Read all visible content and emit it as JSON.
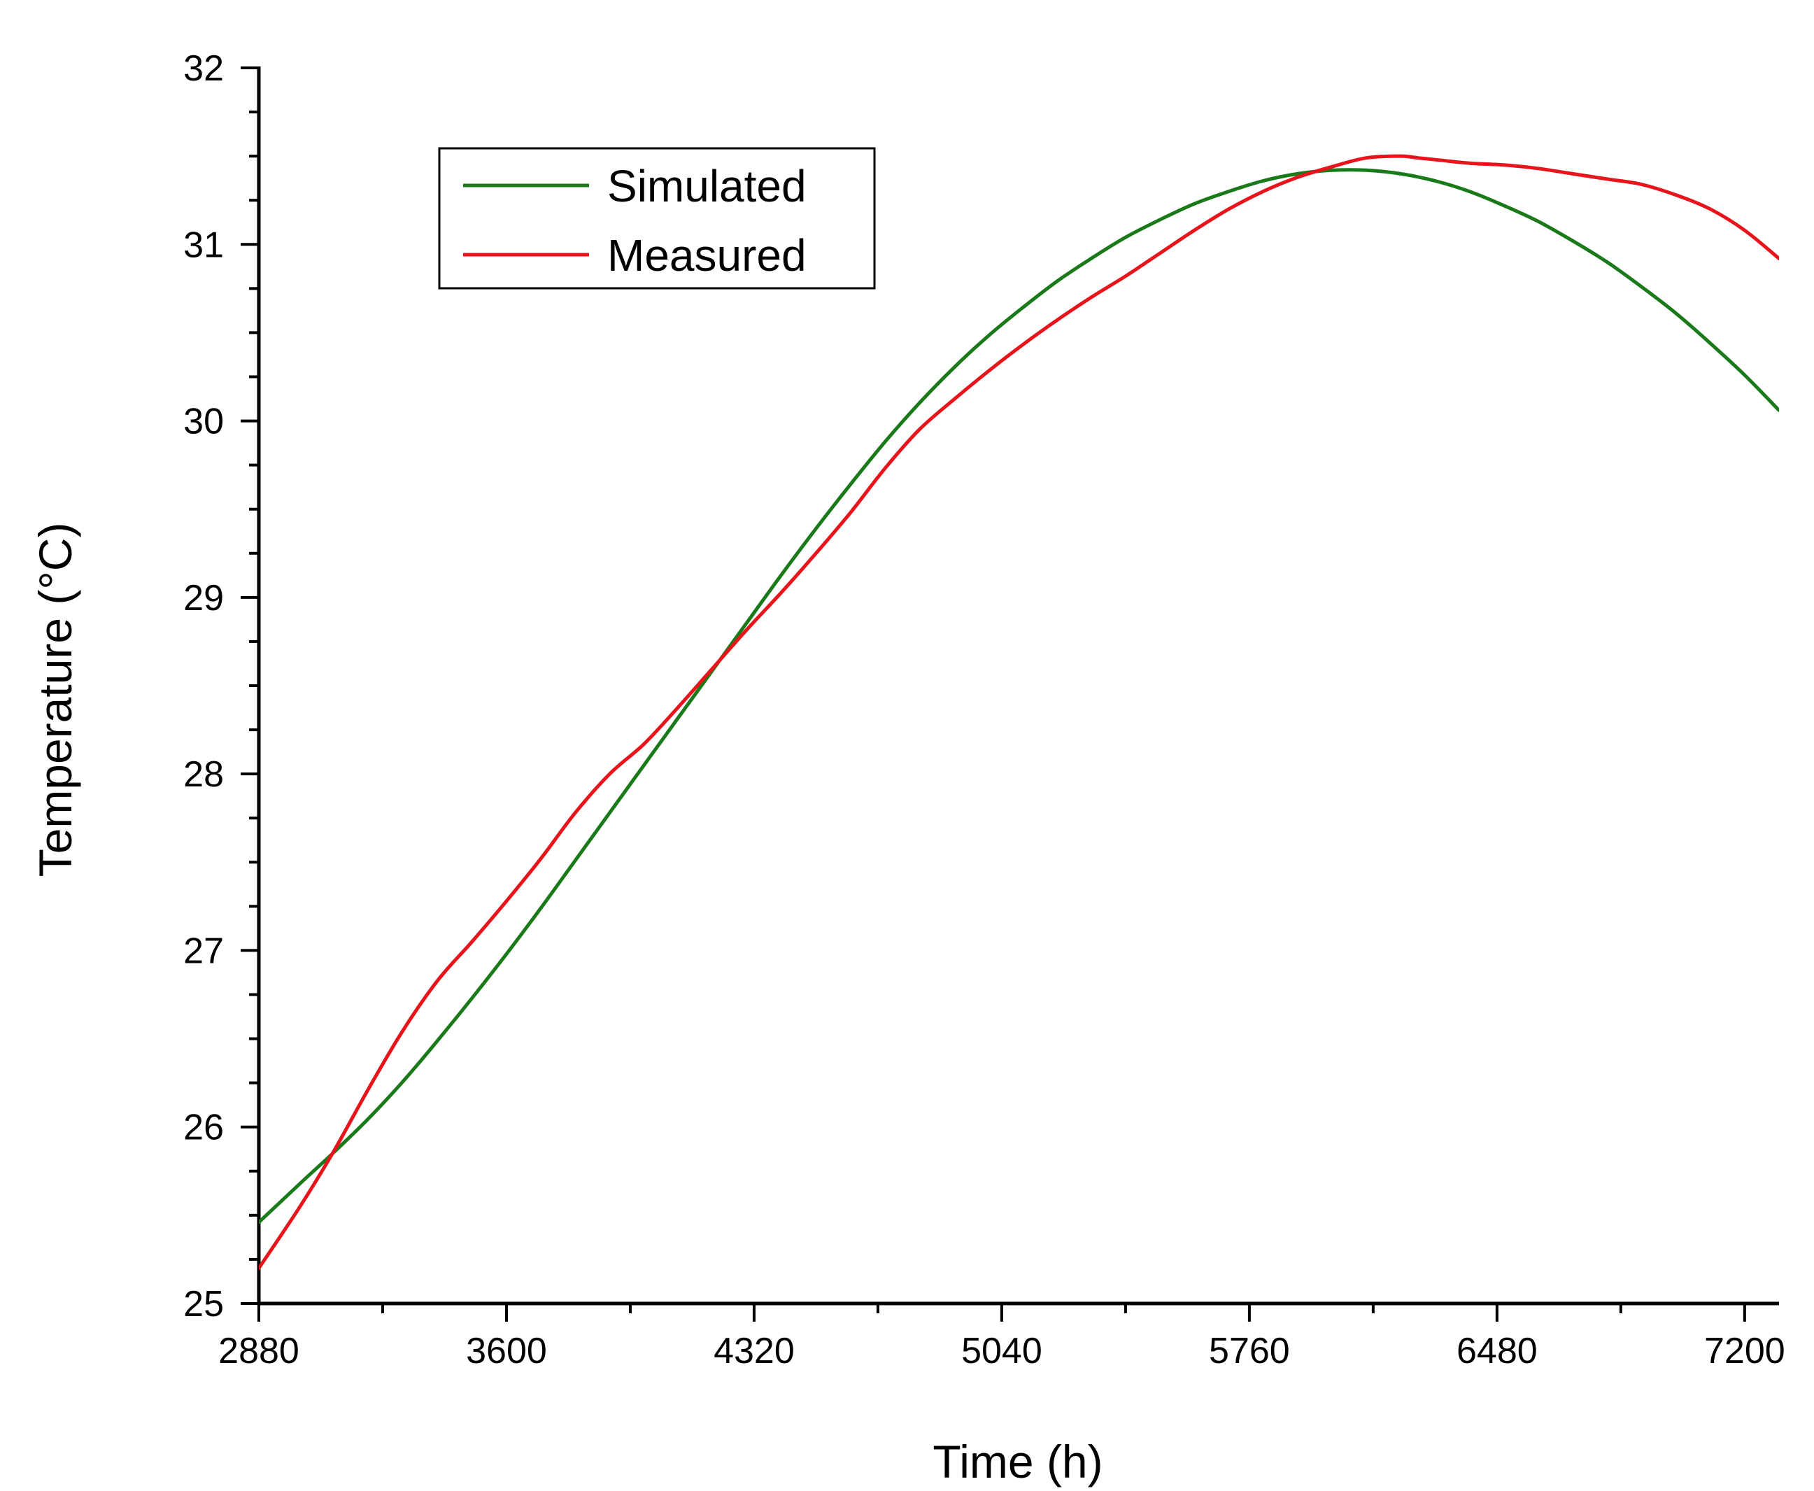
{
  "chart_data": {
    "type": "line",
    "title": "",
    "xlabel": "Time (h)",
    "ylabel": "Temperature (°C)",
    "xlim": [
      2880,
      7300
    ],
    "ylim": [
      25,
      32
    ],
    "x_ticks": [
      2880,
      3600,
      4320,
      5040,
      5760,
      6480,
      7200
    ],
    "x_tick_labels": [
      "2880",
      "3600",
      "4320",
      "5040",
      "5760",
      "6480",
      "7200"
    ],
    "y_ticks": [
      25,
      26,
      27,
      28,
      29,
      30,
      31,
      32
    ],
    "y_tick_labels": [
      "25",
      "26",
      "27",
      "28",
      "29",
      "30",
      "31",
      "32"
    ],
    "grid": false,
    "legend_position": "top-left",
    "series": [
      {
        "name": "Simulated",
        "color": "#1a7a1a",
        "x": [
          2880,
          3000,
          3100,
          3200,
          3300,
          3400,
          3500,
          3600,
          3700,
          3800,
          3900,
          4000,
          4100,
          4200,
          4300,
          4400,
          4500,
          4600,
          4700,
          4800,
          4900,
          5000,
          5100,
          5200,
          5300,
          5400,
          5500,
          5600,
          5700,
          5800,
          5900,
          6000,
          6100,
          6200,
          6300,
          6400,
          6500,
          6600,
          6700,
          6800,
          6900,
          7000,
          7100,
          7200,
          7300
        ],
        "y": [
          25.46,
          25.68,
          25.86,
          26.05,
          26.26,
          26.49,
          26.73,
          26.98,
          27.24,
          27.51,
          27.78,
          28.05,
          28.32,
          28.59,
          28.86,
          29.13,
          29.39,
          29.64,
          29.88,
          30.1,
          30.3,
          30.48,
          30.64,
          30.79,
          30.92,
          31.04,
          31.14,
          31.23,
          31.3,
          31.36,
          31.4,
          31.42,
          31.42,
          31.4,
          31.36,
          31.3,
          31.22,
          31.13,
          31.02,
          30.9,
          30.76,
          30.61,
          30.44,
          30.26,
          30.06
        ]
      },
      {
        "name": "Measured",
        "color": "#e8141c",
        "x": [
          2880,
          3000,
          3100,
          3200,
          3300,
          3400,
          3500,
          3600,
          3700,
          3800,
          3900,
          4000,
          4100,
          4200,
          4300,
          4400,
          4500,
          4600,
          4700,
          4800,
          4900,
          5000,
          5100,
          5200,
          5300,
          5400,
          5500,
          5600,
          5700,
          5800,
          5900,
          6000,
          6100,
          6200,
          6250,
          6300,
          6400,
          6500,
          6600,
          6700,
          6800,
          6900,
          7000,
          7100,
          7200,
          7300
        ],
        "y": [
          25.2,
          25.55,
          25.87,
          26.22,
          26.55,
          26.83,
          27.05,
          27.28,
          27.52,
          27.78,
          28.0,
          28.17,
          28.38,
          28.6,
          28.82,
          29.03,
          29.25,
          29.48,
          29.73,
          29.95,
          30.12,
          30.28,
          30.43,
          30.57,
          30.7,
          30.82,
          30.95,
          31.08,
          31.2,
          31.3,
          31.38,
          31.44,
          31.49,
          31.5,
          31.49,
          31.48,
          31.46,
          31.45,
          31.43,
          31.4,
          31.37,
          31.34,
          31.28,
          31.2,
          31.08,
          30.92
        ]
      }
    ]
  }
}
